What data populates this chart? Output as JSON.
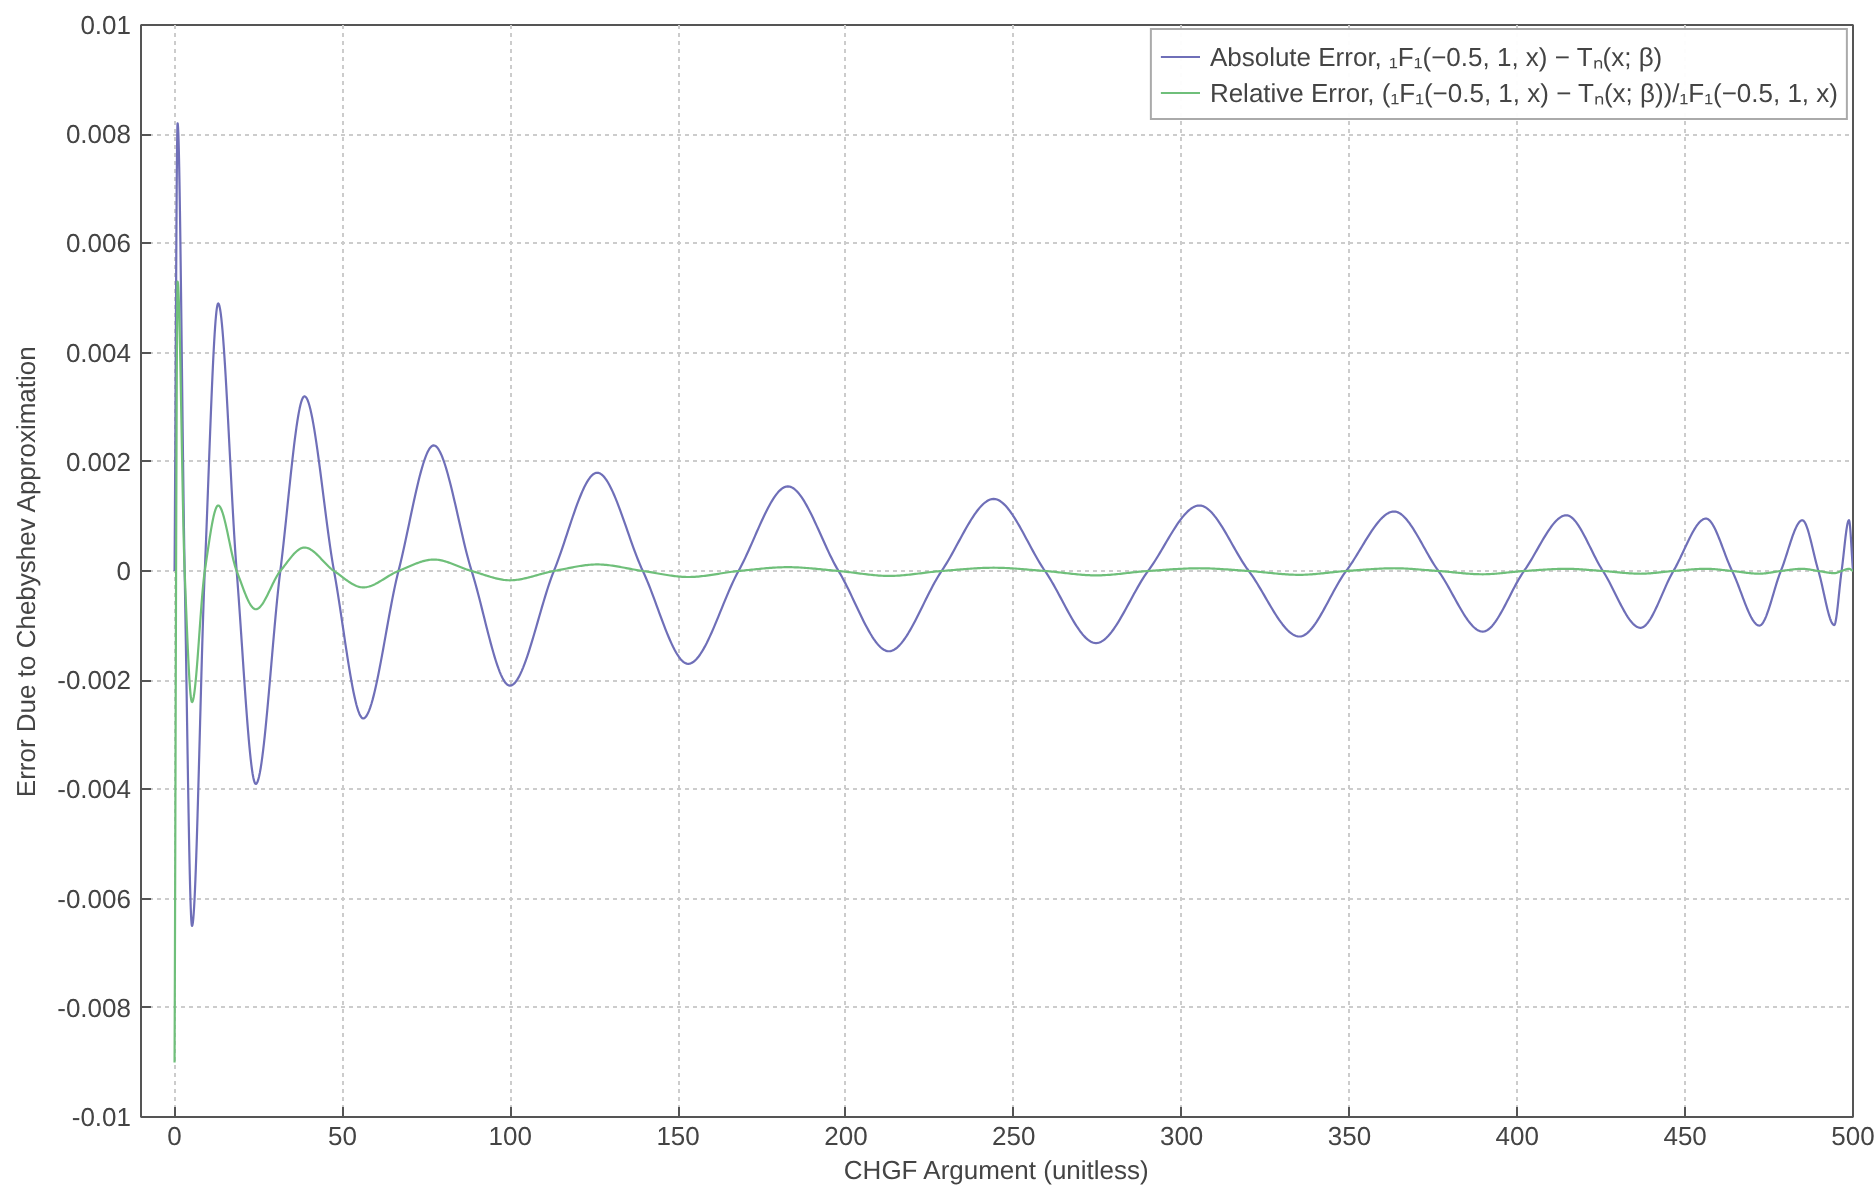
{
  "chart_data": {
    "type": "line",
    "xlabel": "CHGF Argument (unitless)",
    "ylabel": "Error Due to Chebyshev Approximation",
    "xlim": [
      -10,
      500
    ],
    "xticks": [
      0,
      50,
      100,
      150,
      200,
      250,
      300,
      350,
      400,
      450,
      500
    ],
    "ylim": [
      -0.01,
      0.01
    ],
    "yticks": [
      -0.01,
      -0.008,
      -0.006,
      -0.004,
      -0.002,
      0,
      0.002,
      0.004,
      0.006,
      0.008,
      0.01
    ],
    "grid": true,
    "legend": "top right",
    "marker": "none",
    "line_style": "solid",
    "x": [
      0,
      0.9,
      3,
      5.2,
      9,
      13,
      18.5,
      24.2,
      31.5,
      38.7,
      47.5,
      56.2,
      66.7,
      77.2,
      88.5,
      99.9,
      113,
      125.9,
      139.5,
      153,
      168,
      182.7,
      197.8,
      212.8,
      228.5,
      244,
      259.3,
      274.5,
      290,
      305.3,
      320,
      335.1,
      349,
      363.3,
      376.5,
      389.7,
      402,
      414.6,
      425.5,
      436.7,
      446.5,
      456.2,
      464,
      472.1,
      478.5,
      484.9,
      489.7,
      494.4,
      496.6,
      498.8,
      500
    ],
    "series": [
      {
        "name": "Absolute Error, ₁F₁(−0.5, 1, x) − Tₙ(x; β)",
        "color": "#6f6fb8",
        "values": [
          0,
          0.0082,
          0,
          -0.0065,
          0,
          0.0049,
          0,
          -0.0039,
          0,
          0.0032,
          0,
          -0.0027,
          0,
          0.0023,
          0,
          -0.0021,
          0,
          0.0018,
          0,
          -0.0017,
          0,
          0.00155,
          0,
          -0.00147,
          0,
          0.00132,
          0,
          -0.00132,
          0,
          0.0012,
          0,
          -0.0012,
          0,
          0.00109,
          0,
          -0.00111,
          0,
          0.00102,
          0,
          -0.00104,
          0,
          0.00096,
          0,
          -0.001,
          0,
          0.00093,
          0,
          -0.00099,
          0,
          0.00093,
          0
        ]
      },
      {
        "name": "Relative Error, (₁F₁(−0.5, 1, x) − Tₙ(x; β))/₁F₁(−0.5, 1, x)",
        "color": "#6fbf7a",
        "values": [
          -0.009,
          0.0053,
          0,
          -0.0024,
          0,
          0.0012,
          0,
          -0.0007,
          0,
          0.00043,
          0,
          -0.0003,
          0,
          0.00021,
          0,
          -0.00017,
          0,
          0.00012,
          0,
          -0.00011,
          0,
          7e-05,
          0,
          -9e-05,
          0,
          6e-05,
          0,
          -8e-05,
          0,
          5e-05,
          0,
          -7e-05,
          0,
          5e-05,
          0,
          -6e-05,
          0,
          4e-05,
          0,
          -5e-05,
          0,
          4e-05,
          0,
          -5e-05,
          0,
          4e-05,
          0,
          -4e-05,
          0,
          4e-05,
          0
        ]
      }
    ]
  }
}
